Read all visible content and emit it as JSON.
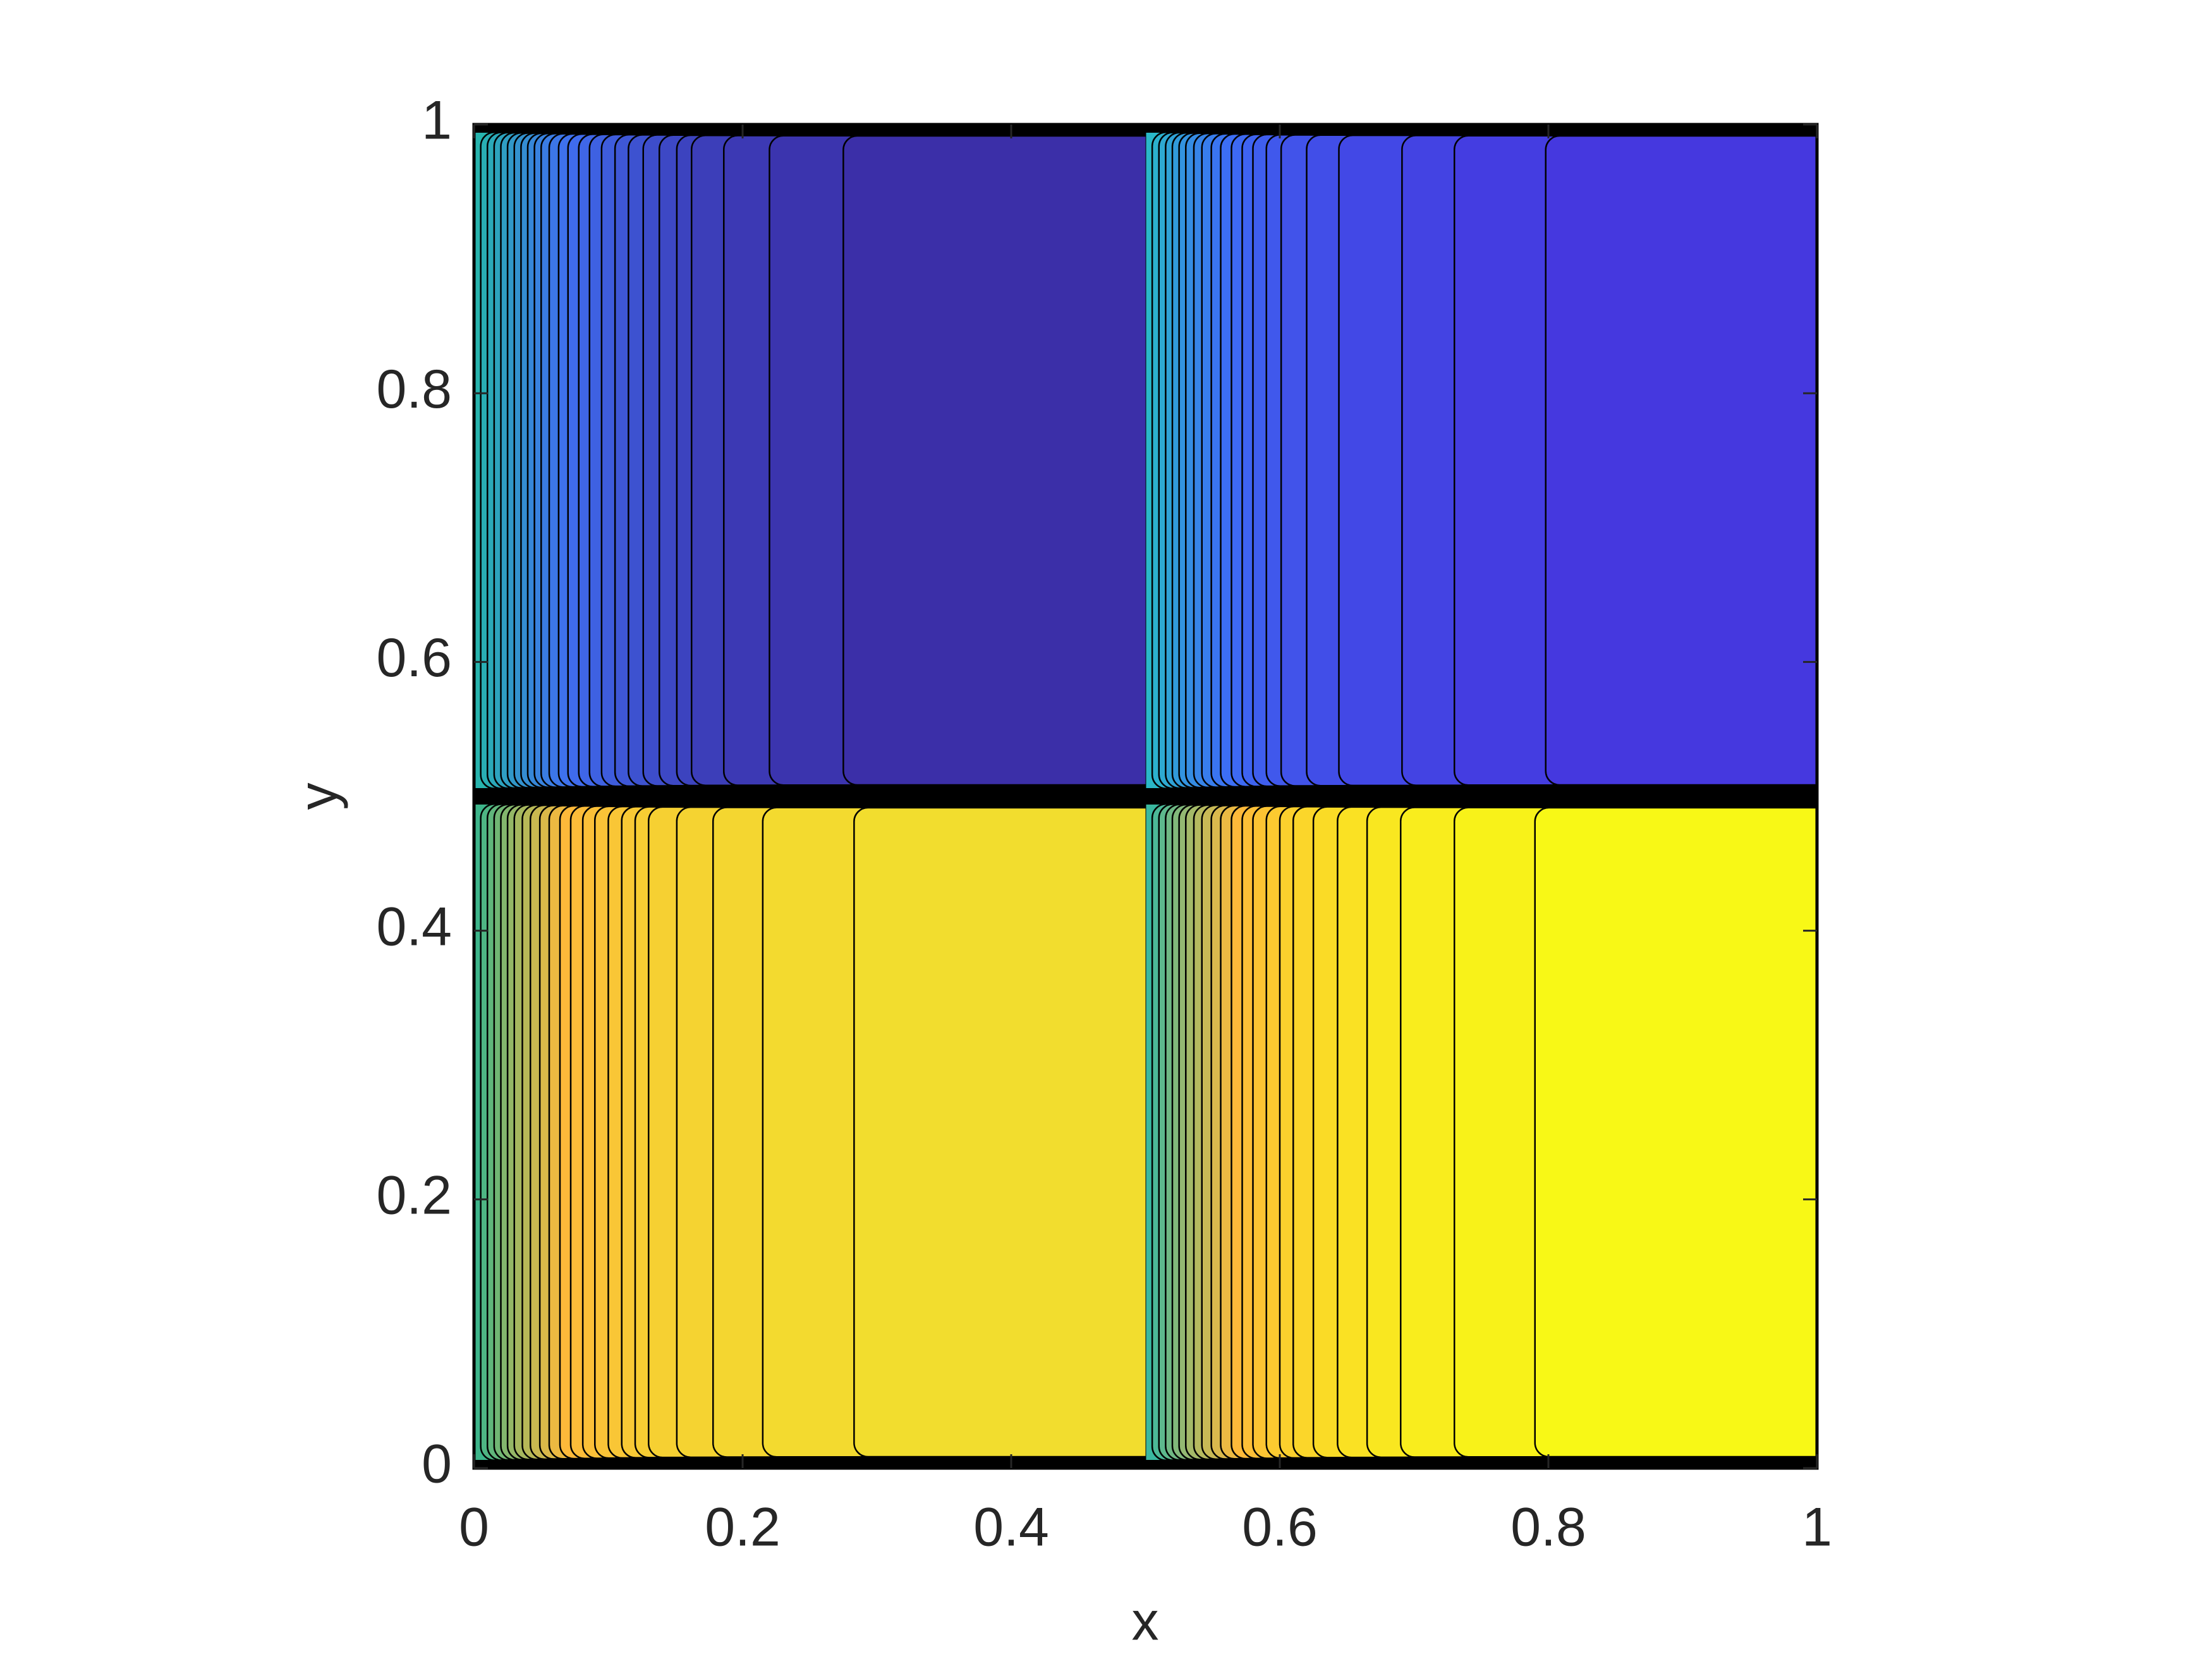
{
  "chart_data": {
    "type": "contour",
    "xlabel": "x",
    "ylabel": "y",
    "xlim": [
      0,
      1
    ],
    "ylim": [
      0,
      1
    ],
    "xticks": [
      0,
      0.2,
      0.4,
      0.6,
      0.8,
      1
    ],
    "yticks": [
      0,
      0.2,
      0.4,
      0.6,
      0.8,
      1
    ],
    "regions": [
      {
        "x_range": [
          0,
          0.5
        ],
        "y_range": [
          0.5,
          1
        ],
        "colors": [
          "#27b4ae",
          "#3f6ef0",
          "#3b2fa8"
        ],
        "levels_x": [
          0.005,
          0.01,
          0.015,
          0.02,
          0.025,
          0.03,
          0.035,
          0.04,
          0.045,
          0.05,
          0.056,
          0.063,
          0.07,
          0.078,
          0.086,
          0.095,
          0.105,
          0.115,
          0.126,
          0.138,
          0.151,
          0.162,
          0.186,
          0.22,
          0.275
        ]
      },
      {
        "x_range": [
          0.5,
          1
        ],
        "y_range": [
          0.5,
          1
        ],
        "colors": [
          "#2ab8c8",
          "#3c6ef5",
          "#4538df"
        ],
        "levels_x": [
          0.505,
          0.51,
          0.515,
          0.52,
          0.525,
          0.53,
          0.536,
          0.542,
          0.549,
          0.556,
          0.564,
          0.572,
          0.58,
          0.59,
          0.601,
          0.62,
          0.644,
          0.691,
          0.73,
          0.798
        ]
      },
      {
        "x_range": [
          0,
          0.5
        ],
        "y_range": [
          0,
          0.5
        ],
        "colors": [
          "#3db58a",
          "#fdb93a",
          "#f2dd2e"
        ],
        "levels_x": [
          0.005,
          0.01,
          0.015,
          0.02,
          0.025,
          0.03,
          0.036,
          0.042,
          0.049,
          0.056,
          0.064,
          0.072,
          0.081,
          0.09,
          0.1,
          0.11,
          0.12,
          0.13,
          0.151,
          0.178,
          0.215,
          0.283
        ]
      },
      {
        "x_range": [
          0.5,
          1
        ],
        "y_range": [
          0,
          0.5
        ],
        "colors": [
          "#3ab8a0",
          "#fdb93a",
          "#f8f816"
        ],
        "levels_x": [
          0.505,
          0.51,
          0.515,
          0.52,
          0.525,
          0.53,
          0.536,
          0.542,
          0.549,
          0.556,
          0.564,
          0.572,
          0.58,
          0.59,
          0.6,
          0.61,
          0.625,
          0.643,
          0.665,
          0.69,
          0.73,
          0.79
        ]
      }
    ]
  }
}
